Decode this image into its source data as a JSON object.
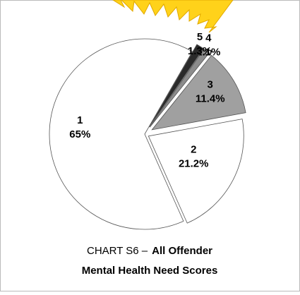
{
  "chart_data": {
    "type": "pie",
    "categories": [
      "1",
      "2",
      "3",
      "4",
      "5"
    ],
    "values": [
      65,
      21.2,
      11.4,
      1.1,
      1.3
    ],
    "value_labels": [
      "65%",
      "21.2%",
      "11.4%",
      "1.1%",
      "1.3%"
    ],
    "colors": [
      "#ffffff",
      "#ffffff",
      "#a0a0a0",
      "#8c8c8c",
      "#2a2a2a"
    ],
    "caption_prefix": "CHART S6 –",
    "caption_title_lines": [
      "All Offender",
      "Mental Health Need Scores"
    ]
  }
}
